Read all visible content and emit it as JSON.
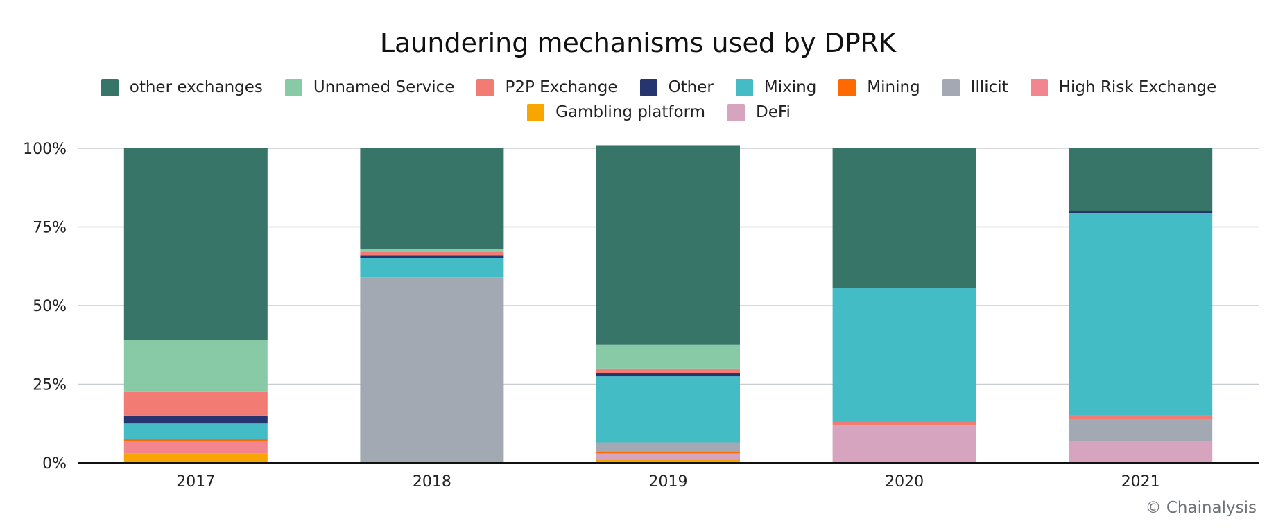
{
  "chart_data": {
    "type": "bar",
    "stacked": true,
    "normalized": true,
    "title": "Laundering mechanisms used by DPRK",
    "xlabel": "",
    "ylabel": "",
    "ylim": [
      0,
      100
    ],
    "yticks": [
      0,
      25,
      50,
      75,
      100
    ],
    "ytick_labels": [
      "0%",
      "25%",
      "50%",
      "75%",
      "100%"
    ],
    "grid": true,
    "legend_position": "top-center",
    "categories": [
      "2017",
      "2018",
      "2019",
      "2020",
      "2021"
    ],
    "series": [
      {
        "name": "Gambling platform",
        "color": "#f7a600",
        "values": [
          3.0,
          0.0,
          1.0,
          0.0,
          0.0
        ]
      },
      {
        "name": "DeFi",
        "color": "#d6a4bf",
        "values": [
          0.0,
          0.0,
          2.0,
          12.0,
          7.0
        ]
      },
      {
        "name": "High Risk Exchange",
        "color": "#f2858e",
        "values": [
          4.0,
          0.0,
          0.0,
          0.0,
          0.0
        ]
      },
      {
        "name": "Mining",
        "color": "#ff6a00",
        "values": [
          0.5,
          0.0,
          0.5,
          0.0,
          0.0
        ]
      },
      {
        "name": "Illicit",
        "color": "#a2a9b2",
        "values": [
          0.0,
          59.0,
          3.0,
          0.0,
          7.0
        ]
      },
      {
        "name": "P2P Exchange",
        "color": "#f27b73",
        "values": [
          0.0,
          0.0,
          0.0,
          1.0,
          1.0
        ]
      },
      {
        "name": "Mixing",
        "color": "#44bcc6",
        "values": [
          5.0,
          6.0,
          21.0,
          42.5,
          64.5
        ]
      },
      {
        "name": "Other",
        "color": "#263470",
        "values": [
          2.5,
          1.0,
          1.0,
          0.0,
          0.5
        ]
      },
      {
        "name": "P2P Exchange",
        "color": "#f27b73",
        "values": [
          7.5,
          1.0,
          1.5,
          0.0,
          0.0
        ]
      },
      {
        "name": "Unnamed Service",
        "color": "#88c9a6",
        "values": [
          16.5,
          1.0,
          7.5,
          0.0,
          0.0
        ]
      },
      {
        "name": "other exchanges",
        "color": "#367567",
        "values": [
          61.0,
          32.0,
          63.5,
          44.5,
          20.0
        ]
      }
    ],
    "legend": [
      [
        {
          "label": "other exchanges",
          "color": "#367567"
        },
        {
          "label": "Unnamed Service",
          "color": "#88c9a6"
        },
        {
          "label": "P2P Exchange",
          "color": "#f27b73"
        },
        {
          "label": "Other",
          "color": "#263470"
        },
        {
          "label": "Mixing",
          "color": "#44bcc6"
        },
        {
          "label": "Mining",
          "color": "#ff6a00"
        },
        {
          "label": "Illicit",
          "color": "#a2a9b2"
        },
        {
          "label": "High Risk Exchange",
          "color": "#f2858e"
        }
      ],
      [
        {
          "label": "Gambling platform",
          "color": "#f7a600"
        },
        {
          "label": "DeFi",
          "color": "#d6a4bf"
        }
      ]
    ]
  },
  "credit": "© Chainalysis"
}
